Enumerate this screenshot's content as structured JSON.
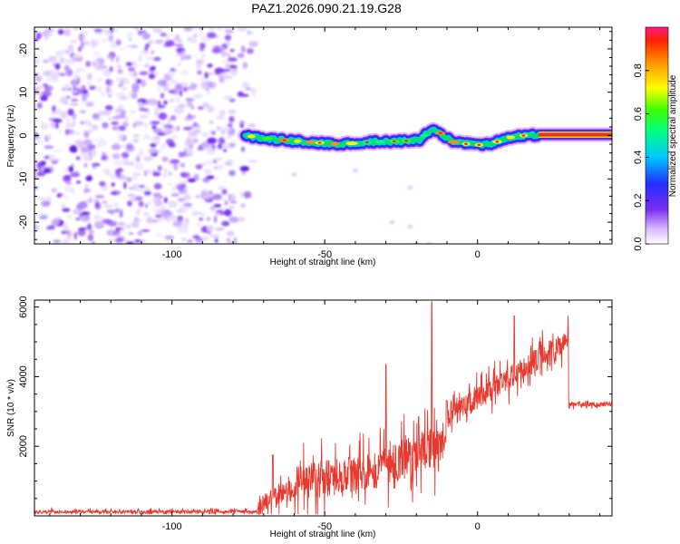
{
  "title": "PAZ1.2026.090.21.19.G28",
  "colors": {
    "frame": "#000000",
    "snr_line": "#e8392f",
    "noise_purple": "#7a2cf0",
    "ridge_core": "#e53030"
  },
  "chart_data": [
    {
      "id": "spectrogram",
      "type": "heatmap",
      "title": "PAZ1.2026.090.21.19.G28",
      "xlabel": "Height of straight line (km)",
      "ylabel": "Frequency (Hz)",
      "xlim": [
        -145,
        44
      ],
      "ylim": [
        -25,
        25
      ],
      "xticks": [
        -100,
        -50,
        0
      ],
      "yticks": [
        -20,
        -10,
        0,
        10,
        20
      ],
      "noise_region_x": [
        -145,
        -76
      ],
      "ridge_start_x": -76,
      "ridge": [
        [
          -76,
          0
        ],
        [
          -65,
          -1
        ],
        [
          -55,
          -1.5
        ],
        [
          -45,
          -2
        ],
        [
          -35,
          -1.5
        ],
        [
          -25,
          -1.3
        ],
        [
          -19,
          -1
        ],
        [
          -15,
          1.5
        ],
        [
          -12,
          0.5
        ],
        [
          -8,
          -1.5
        ],
        [
          -3,
          -2
        ],
        [
          0,
          -2.2
        ],
        [
          5,
          -1.8
        ],
        [
          10,
          -0.5
        ],
        [
          15,
          0
        ],
        [
          20,
          0.2
        ],
        [
          44,
          0.2
        ]
      ],
      "colorbar": {
        "label": "Normalized spectral amplitude",
        "range": [
          0,
          1
        ],
        "ticks": [
          0.0,
          0.2,
          0.4,
          0.6,
          0.8
        ],
        "tick_labels": [
          "0.0",
          "0.2",
          "0.4",
          "0.6",
          "0.8"
        ]
      }
    },
    {
      "id": "snr",
      "type": "line",
      "xlabel": "Height of straight line (km)",
      "ylabel": "SNR (10 * v/v)",
      "xlim": [
        -145,
        44
      ],
      "ylim": [
        0,
        6200
      ],
      "xticks": [
        -100,
        -50,
        0
      ],
      "yticks": [
        2000,
        4000,
        6000
      ],
      "series": [
        {
          "name": "SNR",
          "segments": [
            {
              "x": [
                -145,
                -72
              ],
              "base": 120,
              "noise": 80
            },
            {
              "x": [
                -72,
                -60
              ],
              "base": [
                300,
                800
              ],
              "noise": 450
            },
            {
              "x": [
                -60,
                -30
              ],
              "base": [
                900,
                1400
              ],
              "noise": 900
            },
            {
              "x": [
                -30,
                -10
              ],
              "base": [
                1400,
                2100
              ],
              "noise": 1000
            },
            {
              "x": [
                -10,
                30
              ],
              "base": [
                2800,
                5100
              ],
              "noise": 550
            },
            {
              "x": [
                30,
                44
              ],
              "base": 3200,
              "noise": 100
            }
          ],
          "spikes": [
            [
              -67,
              1750
            ],
            [
              -30,
              4350
            ],
            [
              -15,
              6150
            ],
            [
              -10,
              3300
            ],
            [
              12,
              5750
            ],
            [
              30,
              5500
            ]
          ]
        }
      ]
    }
  ]
}
